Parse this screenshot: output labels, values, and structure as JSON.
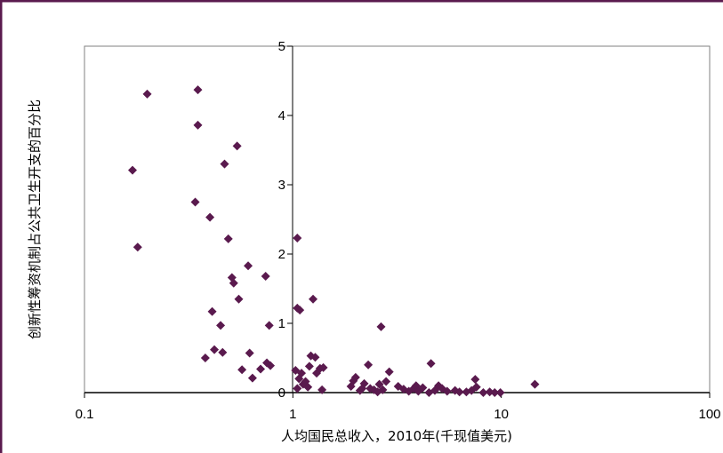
{
  "chart_data": {
    "type": "scatter",
    "title": "",
    "xlabel": "人均国民总收入，2010年(千现值美元)",
    "ylabel": "创新性筹资机制占公共卫生开支的百分比",
    "x_scale": "log",
    "xlim": [
      0.1,
      100
    ],
    "ylim": [
      0,
      5
    ],
    "x_ticks": [
      0.1,
      1,
      10,
      100
    ],
    "x_tick_labels": [
      "0.1",
      "1",
      "10",
      "100"
    ],
    "y_ticks": [
      0,
      1,
      2,
      3,
      4,
      5
    ],
    "y_tick_labels": [
      "0",
      "1",
      "2",
      "3",
      "4",
      "5"
    ],
    "grid": false,
    "legend": "none",
    "colors": {
      "marker": "#5a1a4e",
      "frame": "#5a1a4e",
      "axis": "#000000",
      "plot_border": "#808080"
    },
    "points": [
      [
        0.17,
        3.21
      ],
      [
        0.18,
        2.1
      ],
      [
        0.2,
        4.31
      ],
      [
        0.34,
        2.75
      ],
      [
        0.35,
        4.37
      ],
      [
        0.35,
        3.86
      ],
      [
        0.38,
        0.5
      ],
      [
        0.4,
        2.53
      ],
      [
        0.41,
        1.17
      ],
      [
        0.42,
        0.62
      ],
      [
        0.45,
        0.97
      ],
      [
        0.46,
        0.58
      ],
      [
        0.47,
        3.3
      ],
      [
        0.49,
        2.22
      ],
      [
        0.51,
        1.66
      ],
      [
        0.52,
        1.58
      ],
      [
        0.54,
        3.56
      ],
      [
        0.55,
        1.35
      ],
      [
        0.57,
        0.33
      ],
      [
        0.61,
        1.83
      ],
      [
        0.62,
        0.57
      ],
      [
        0.64,
        0.21
      ],
      [
        0.7,
        0.34
      ],
      [
        0.74,
        1.68
      ],
      [
        0.75,
        0.43
      ],
      [
        0.77,
        0.97
      ],
      [
        0.78,
        0.39
      ],
      [
        1.05,
        2.23
      ],
      [
        1.05,
        1.22
      ],
      [
        1.08,
        1.19
      ],
      [
        1.03,
        0.32
      ],
      [
        1.07,
        0.2
      ],
      [
        1.1,
        0.28
      ],
      [
        1.12,
        0.12
      ],
      [
        1.15,
        0.16
      ],
      [
        1.18,
        0.08
      ],
      [
        1.2,
        0.38
      ],
      [
        1.22,
        0.53
      ],
      [
        1.25,
        1.35
      ],
      [
        1.28,
        0.51
      ],
      [
        1.3,
        0.28
      ],
      [
        1.35,
        0.35
      ],
      [
        1.38,
        0.04
      ],
      [
        1.4,
        0.36
      ],
      [
        1.05,
        0.06
      ],
      [
        1.9,
        0.09
      ],
      [
        1.95,
        0.17
      ],
      [
        2.0,
        0.22
      ],
      [
        2.1,
        0.03
      ],
      [
        2.15,
        0.06
      ],
      [
        2.2,
        0.13
      ],
      [
        2.3,
        0.4
      ],
      [
        2.35,
        0.06
      ],
      [
        2.45,
        0.04
      ],
      [
        2.55,
        0.01
      ],
      [
        2.6,
        0.12
      ],
      [
        2.65,
        0.95
      ],
      [
        2.7,
        0.04
      ],
      [
        2.8,
        0.16
      ],
      [
        2.9,
        0.3
      ],
      [
        3.2,
        0.09
      ],
      [
        3.4,
        0.05
      ],
      [
        3.6,
        0.02
      ],
      [
        3.8,
        0.06
      ],
      [
        3.9,
        0.1
      ],
      [
        4.0,
        0.02
      ],
      [
        4.2,
        0.07
      ],
      [
        4.5,
        0.0
      ],
      [
        4.6,
        0.42
      ],
      [
        4.8,
        0.03
      ],
      [
        5.0,
        0.1
      ],
      [
        5.2,
        0.06
      ],
      [
        5.5,
        0.02
      ],
      [
        6.0,
        0.03
      ],
      [
        6.3,
        0.01
      ],
      [
        6.8,
        0.01
      ],
      [
        7.2,
        0.03
      ],
      [
        7.5,
        0.19
      ],
      [
        7.6,
        0.08
      ],
      [
        8.2,
        0.0
      ],
      [
        8.8,
        0.01
      ],
      [
        9.3,
        0.0
      ],
      [
        9.9,
        0.0
      ],
      [
        14.5,
        0.12
      ]
    ]
  }
}
